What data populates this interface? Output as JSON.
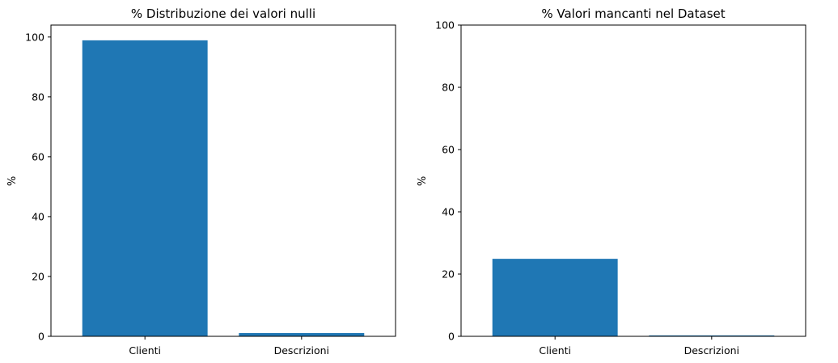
{
  "colors": {
    "bar": "#1f77b4",
    "axis": "#000000",
    "background": "#ffffff"
  },
  "chart_data": [
    {
      "type": "bar",
      "title": "% Distribuzione dei valori nulli",
      "xlabel": "",
      "ylabel": "%",
      "categories": [
        "Clienti",
        "Descrizioni"
      ],
      "values": [
        98.9,
        1.1
      ],
      "ylim": [
        0,
        104
      ],
      "yticks": [
        0,
        20,
        40,
        60,
        80,
        100
      ],
      "ytick_labels": [
        "0",
        "20",
        "40",
        "60",
        "80",
        "100"
      ],
      "grid": false
    },
    {
      "type": "bar",
      "title": "% Valori mancanti nel Dataset",
      "xlabel": "",
      "ylabel": "%",
      "categories": [
        "Clienti",
        "Descrizioni"
      ],
      "values": [
        24.9,
        0.3
      ],
      "ylim": [
        0,
        100
      ],
      "yticks": [
        0,
        20,
        40,
        60,
        80,
        100
      ],
      "ytick_labels": [
        "0",
        "20",
        "40",
        "60",
        "80",
        "100"
      ],
      "grid": false
    }
  ]
}
